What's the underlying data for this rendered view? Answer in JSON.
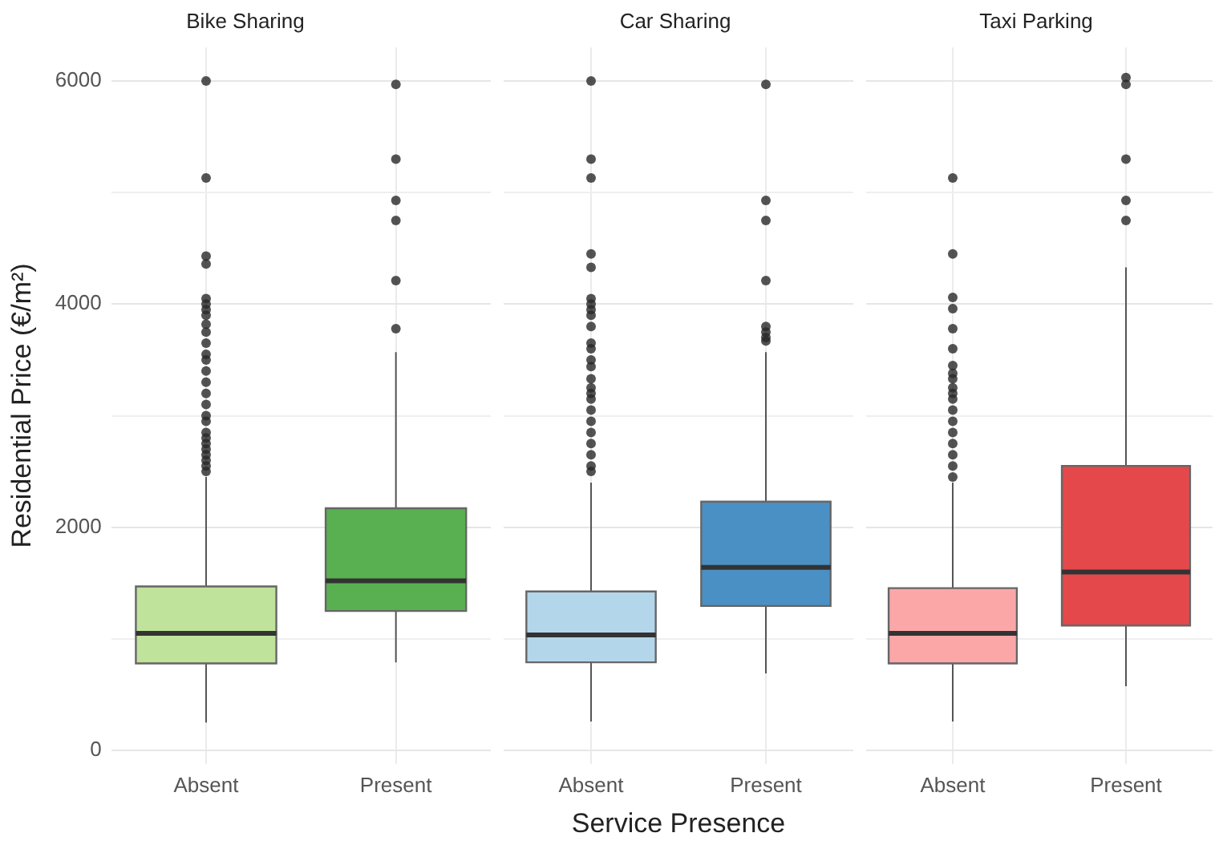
{
  "chart_data": [
    {
      "type": "box",
      "title": "Bike Sharing",
      "ylabel": "Residential Price (€/m²)",
      "categories": [
        "Absent",
        "Present"
      ],
      "colors": [
        "#bfe39b",
        "#58b050"
      ],
      "ylim": [
        -120,
        6300
      ],
      "yticks": [
        0,
        {
          "value": 1000,
          "label": null
        },
        2000,
        {
          "value": 3000,
          "label": null
        },
        4000,
        {
          "value": 5000,
          "label": null
        },
        6000
      ],
      "grid": true,
      "boxes": [
        {
          "low": 250,
          "q1": 780,
          "median": 1050,
          "q3": 1470,
          "high": 2450,
          "outliers": [
            6000,
            5130,
            4430,
            4360,
            4050,
            4000,
            3950,
            3900,
            3820,
            3750,
            3650,
            3550,
            3500,
            3400,
            3300,
            3200,
            3100,
            3000,
            2950,
            2850,
            2800,
            2750,
            2700,
            2650,
            2600,
            2550,
            2500
          ]
        },
        {
          "low": 790,
          "q1": 1250,
          "median": 1520,
          "q3": 2170,
          "high": 3570,
          "outliers": [
            5970,
            5300,
            4930,
            4750,
            4210,
            3780
          ]
        }
      ]
    },
    {
      "type": "box",
      "title": "Car Sharing",
      "xlabel": "Service Presence",
      "categories": [
        "Absent",
        "Present"
      ],
      "colors": [
        "#b4d6ea",
        "#4a90c5"
      ],
      "ylim": [
        -120,
        6300
      ],
      "yticks": [
        0,
        {
          "value": 1000,
          "label": null
        },
        2000,
        {
          "value": 3000,
          "label": null
        },
        4000,
        {
          "value": 5000,
          "label": null
        },
        6000
      ],
      "grid": true,
      "tick_labels": "x",
      "boxes": [
        {
          "low": 260,
          "q1": 790,
          "median": 1035,
          "q3": 1425,
          "high": 2400,
          "outliers": [
            6000,
            5300,
            5130,
            4450,
            4330,
            4050,
            4000,
            3950,
            3900,
            3800,
            3650,
            3600,
            3500,
            3440,
            3330,
            3250,
            3200,
            3150,
            3050,
            2950,
            2850,
            2750,
            2650,
            2550,
            2500
          ]
        },
        {
          "low": 690,
          "q1": 1295,
          "median": 1640,
          "q3": 2230,
          "high": 3570,
          "outliers": [
            5970,
            4930,
            4750,
            4210,
            3800,
            3750,
            3700,
            3670
          ]
        }
      ]
    },
    {
      "type": "box",
      "title": "Taxi Parking",
      "categories": [
        "Absent",
        "Present"
      ],
      "colors": [
        "#fba7a8",
        "#e5484a"
      ],
      "ylim": [
        -120,
        6300
      ],
      "yticks": [
        0,
        {
          "value": 1000,
          "label": null
        },
        2000,
        {
          "value": 3000,
          "label": null
        },
        4000,
        {
          "value": 5000,
          "label": null
        },
        6000
      ],
      "grid": true,
      "tick_labels": "x",
      "boxes": [
        {
          "low": 260,
          "q1": 780,
          "median": 1050,
          "q3": 1455,
          "high": 2400,
          "outliers": [
            5130,
            4450,
            4060,
            3960,
            3780,
            3600,
            3450,
            3380,
            3330,
            3250,
            3200,
            3150,
            3050,
            2950,
            2850,
            2750,
            2650,
            2550,
            2450
          ]
        },
        {
          "low": 575,
          "q1": 1120,
          "median": 1600,
          "q3": 2550,
          "high": 4330,
          "outliers": [
            6030,
            5970,
            5300,
            4930,
            4750
          ]
        }
      ]
    }
  ]
}
